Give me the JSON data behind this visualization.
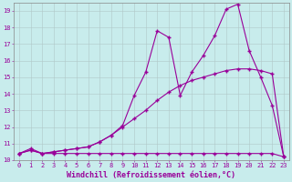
{
  "background_color": "#c8ecec",
  "line_color": "#990099",
  "grid_color": "#b0c8c8",
  "xlabel": "Windchill (Refroidissement éolien,°C)",
  "xlabel_color": "#990099",
  "xlim": [
    -0.5,
    23.5
  ],
  "ylim": [
    10.0,
    19.5
  ],
  "yticks": [
    10,
    11,
    12,
    13,
    14,
    15,
    16,
    17,
    18,
    19
  ],
  "xticks": [
    0,
    1,
    2,
    3,
    4,
    5,
    6,
    7,
    8,
    9,
    10,
    11,
    12,
    13,
    14,
    15,
    16,
    17,
    18,
    19,
    20,
    21,
    22,
    23
  ],
  "series1_x": [
    0,
    1,
    2,
    3,
    4,
    5,
    6,
    7,
    8,
    9,
    10,
    11,
    12,
    13,
    14,
    15,
    16,
    17,
    18,
    19,
    20,
    21,
    22,
    23
  ],
  "series1_y": [
    10.4,
    10.6,
    10.4,
    10.4,
    10.4,
    10.4,
    10.4,
    10.4,
    10.4,
    10.4,
    10.4,
    10.4,
    10.4,
    10.4,
    10.4,
    10.4,
    10.4,
    10.4,
    10.4,
    10.4,
    10.4,
    10.4,
    10.4,
    10.2
  ],
  "series2_x": [
    0,
    1,
    2,
    3,
    4,
    5,
    6,
    7,
    8,
    9,
    10,
    11,
    12,
    13,
    14,
    15,
    16,
    17,
    18,
    19,
    20,
    21,
    22,
    23
  ],
  "series2_y": [
    10.4,
    10.6,
    10.4,
    10.5,
    10.6,
    10.7,
    10.8,
    11.1,
    11.5,
    12.0,
    12.5,
    13.0,
    13.6,
    14.1,
    14.5,
    14.8,
    15.0,
    15.2,
    15.4,
    15.5,
    15.5,
    15.4,
    15.2,
    10.2
  ],
  "series3_x": [
    0,
    1,
    2,
    3,
    4,
    5,
    6,
    7,
    8,
    9,
    10,
    11,
    12,
    13,
    14,
    15,
    16,
    17,
    18,
    19,
    20,
    21,
    22,
    23
  ],
  "series3_y": [
    10.4,
    10.7,
    10.4,
    10.5,
    10.6,
    10.7,
    10.8,
    11.1,
    11.5,
    12.1,
    13.9,
    15.3,
    17.8,
    17.4,
    13.9,
    15.3,
    16.3,
    17.5,
    19.1,
    19.4,
    16.6,
    15.0,
    13.3,
    10.2
  ],
  "marker": "+",
  "markersize": 2.5,
  "linewidth": 0.8,
  "tick_fontsize": 5.0,
  "xlabel_fontsize": 6.0
}
